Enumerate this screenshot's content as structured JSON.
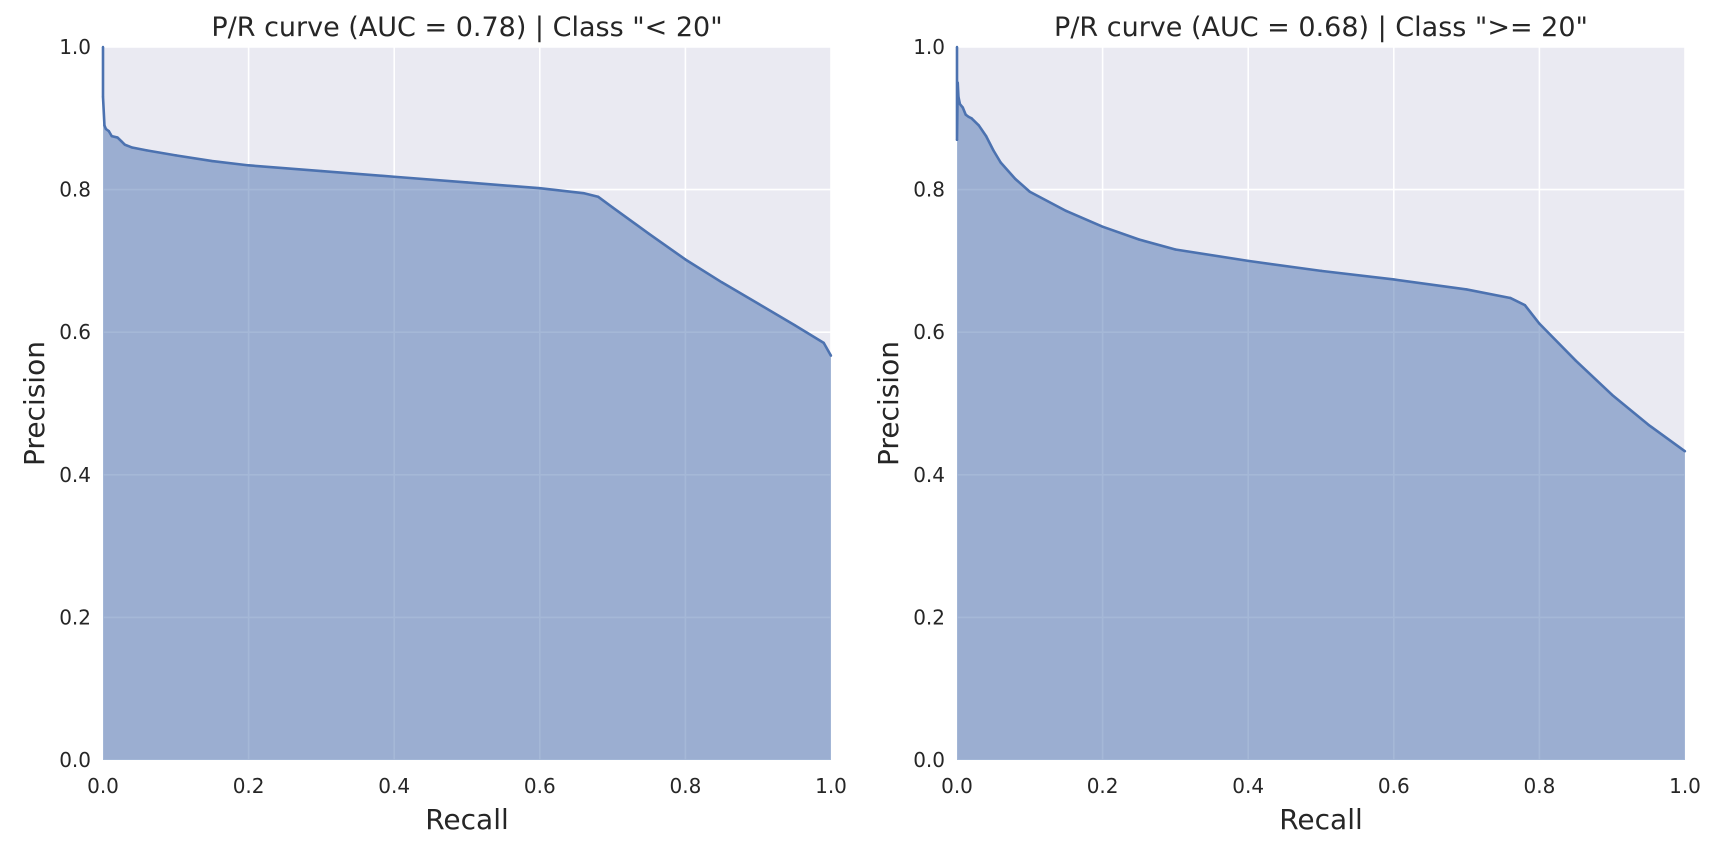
{
  "chart_data": [
    {
      "type": "area",
      "title": "P/R curve (AUC = 0.78) | Class \"< 20\"",
      "xlabel": "Recall",
      "ylabel": "Precision",
      "xlim": [
        0,
        1
      ],
      "ylim": [
        0,
        1
      ],
      "xticks": [
        "0.0",
        "0.2",
        "0.4",
        "0.6",
        "0.8",
        "1.0"
      ],
      "yticks": [
        "0.0",
        "0.2",
        "0.4",
        "0.6",
        "0.8",
        "1.0"
      ],
      "grid": true,
      "x": [
        0.0,
        0.0,
        0.002,
        0.004,
        0.008,
        0.012,
        0.02,
        0.025,
        0.03,
        0.04,
        0.06,
        0.1,
        0.15,
        0.2,
        0.3,
        0.4,
        0.5,
        0.6,
        0.66,
        0.68,
        0.7,
        0.75,
        0.8,
        0.85,
        0.9,
        0.95,
        0.99,
        1.0
      ],
      "y": [
        1.0,
        0.93,
        0.89,
        0.885,
        0.882,
        0.875,
        0.873,
        0.868,
        0.863,
        0.859,
        0.855,
        0.848,
        0.84,
        0.834,
        0.826,
        0.818,
        0.81,
        0.802,
        0.795,
        0.79,
        0.775,
        0.738,
        0.702,
        0.67,
        0.64,
        0.61,
        0.585,
        0.567
      ]
    },
    {
      "type": "area",
      "title": "P/R curve (AUC = 0.68) | Class \">= 20\"",
      "xlabel": "Recall",
      "ylabel": "Precision",
      "xlim": [
        0,
        1
      ],
      "ylim": [
        0,
        1
      ],
      "xticks": [
        "0.0",
        "0.2",
        "0.4",
        "0.6",
        "0.8",
        "1.0"
      ],
      "yticks": [
        "0.0",
        "0.2",
        "0.4",
        "0.6",
        "0.8",
        "1.0"
      ],
      "grid": true,
      "x": [
        0.0,
        0.0,
        0.001,
        0.002,
        0.004,
        0.008,
        0.012,
        0.016,
        0.02,
        0.03,
        0.04,
        0.05,
        0.06,
        0.08,
        0.1,
        0.15,
        0.2,
        0.25,
        0.3,
        0.4,
        0.5,
        0.6,
        0.7,
        0.76,
        0.78,
        0.8,
        0.85,
        0.9,
        0.95,
        1.0
      ],
      "y": [
        1.0,
        0.87,
        0.95,
        0.93,
        0.92,
        0.915,
        0.905,
        0.902,
        0.9,
        0.89,
        0.875,
        0.855,
        0.838,
        0.815,
        0.797,
        0.77,
        0.748,
        0.73,
        0.716,
        0.7,
        0.686,
        0.674,
        0.66,
        0.648,
        0.638,
        0.612,
        0.56,
        0.512,
        0.47,
        0.433
      ]
    }
  ],
  "colors": {
    "plot_bg": "#eaeaf2",
    "grid": "#ffffff",
    "line": "#4c72b0",
    "fill": "#98abcf",
    "text": "#262626"
  }
}
